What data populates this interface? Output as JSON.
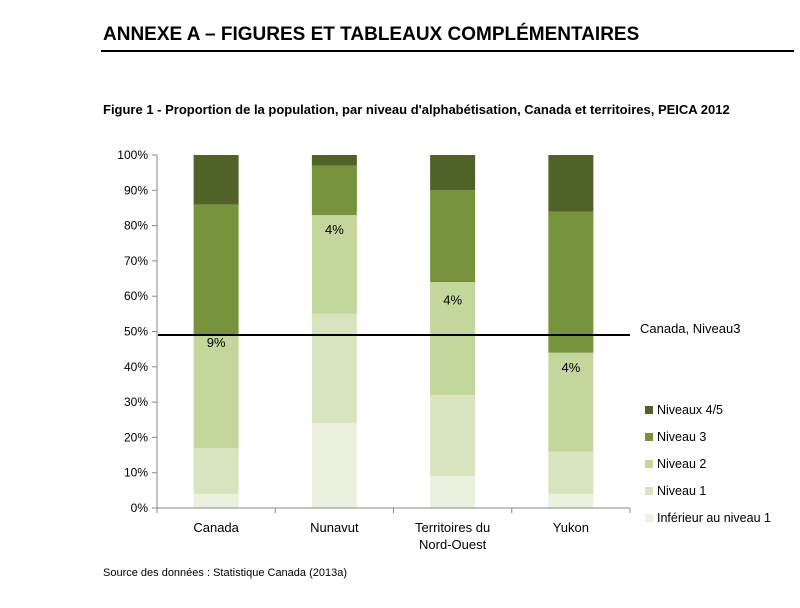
{
  "header": {
    "annex_title": "ANNEXE A – FIGURES ET TABLEAUX COMPLÉMENTAIRES",
    "figure_title": "Figure 1 - Proportion de la population, par niveau d'alphabétisation, Canada et territoires, PEICA 2012",
    "source": "Source des données : Statistique Canada (2013a)"
  },
  "chart_data": {
    "type": "bar",
    "stacked": true,
    "categories": [
      [
        "Canada"
      ],
      [
        "Nunavut"
      ],
      [
        "Territoires du",
        "Nord-Ouest"
      ],
      [
        "Yukon"
      ]
    ],
    "series": [
      {
        "name": "Inférieur au niveau 1",
        "color": "#ebf1de",
        "values": [
          4,
          24,
          9,
          4
        ]
      },
      {
        "name": "Niveau 1",
        "color": "#d7e4bd",
        "values": [
          13,
          31,
          23,
          12
        ]
      },
      {
        "name": "Niveau 2",
        "color": "#c3d69b",
        "values": [
          32,
          28,
          32,
          28
        ]
      },
      {
        "name": "Niveau 3",
        "color": "#77933c",
        "values": [
          37,
          14,
          26,
          40
        ]
      },
      {
        "name": "Niveaux 4/5",
        "color": "#4f6228",
        "values": [
          14,
          3,
          10,
          16
        ]
      }
    ],
    "legend_order": [
      4,
      3,
      2,
      1,
      0
    ],
    "legend_position": "right",
    "y_ticks": [
      "0%",
      "10%",
      "20%",
      "30%",
      "40%",
      "50%",
      "60%",
      "70%",
      "80%",
      "90%",
      "100%"
    ],
    "ylim": [
      0,
      100
    ],
    "grid": false,
    "reference_line": {
      "value": 49,
      "label": "Canada, Niveau3"
    },
    "data_labels": [
      {
        "category": 0,
        "y": 47,
        "text": "9%"
      },
      {
        "category": 1,
        "y": 79,
        "text": "4%"
      },
      {
        "category": 2,
        "y": 59,
        "text": "4%"
      },
      {
        "category": 3,
        "y": 40,
        "text": "4%"
      }
    ]
  }
}
